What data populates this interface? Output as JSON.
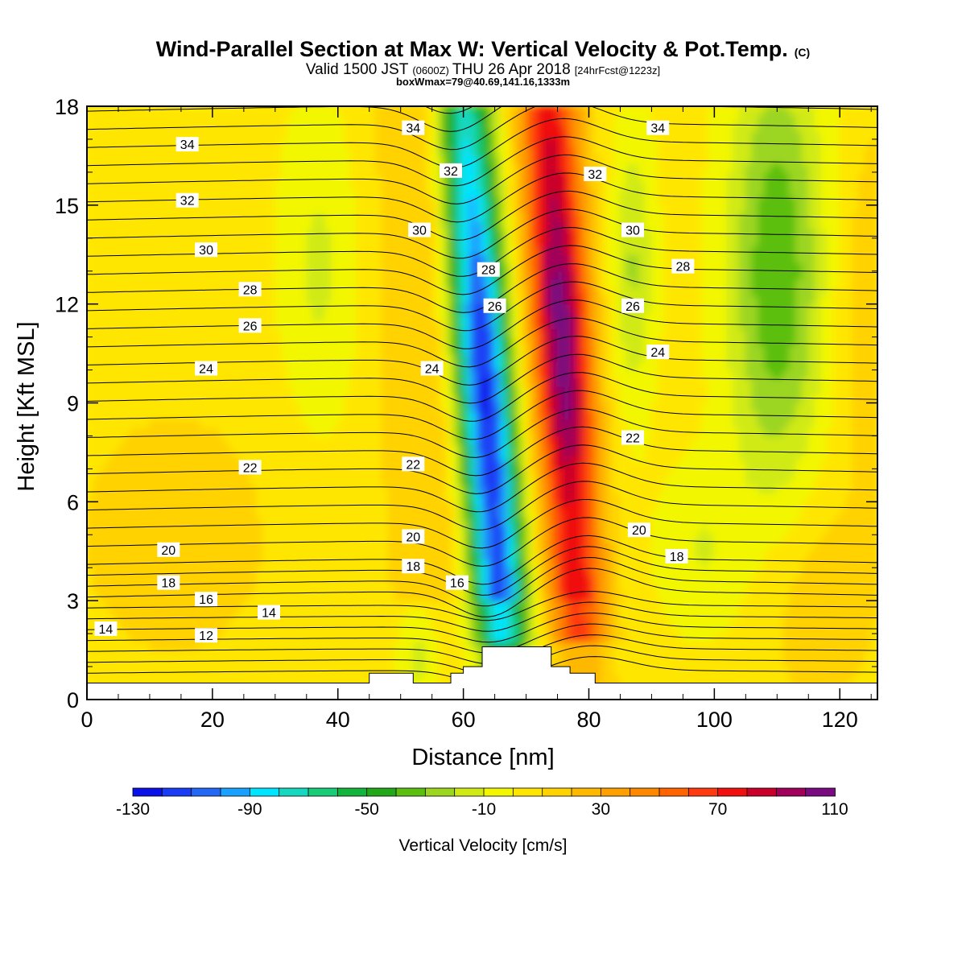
{
  "header": {
    "title_main": "Wind-Parallel Section at Max W: Vertical Velocity & Pot.Temp.",
    "title_mark": "(C)",
    "valid_a": "Valid 1500 JST",
    "valid_b": "(0600Z)",
    "valid_c": "THU 26 Apr 2018",
    "valid_d": "[24hrFcst@1223z]",
    "box_info": "boxWmax=79@40.69,141.16,1333m"
  },
  "chart_data": {
    "type": "heatmap",
    "xlabel": "Distance [nm]",
    "ylabel": "Height [Kft MSL]",
    "xlim": [
      0,
      126
    ],
    "ylim": [
      0,
      18
    ],
    "x_ticks": [
      "0",
      "20",
      "40",
      "60",
      "80",
      "100",
      "120"
    ],
    "y_ticks": [
      "0",
      "3",
      "6",
      "9",
      "12",
      "15",
      "18"
    ],
    "colorbar": {
      "label": "Vertical Velocity [cm/s]",
      "levels": [
        -130,
        -120,
        -110,
        -100,
        -90,
        -80,
        -70,
        -60,
        -50,
        -40,
        -30,
        -20,
        -10,
        0,
        10,
        20,
        30,
        40,
        50,
        60,
        70,
        80,
        90,
        100,
        110
      ],
      "colors": [
        "#0a10e8",
        "#1a3cf5",
        "#2268f5",
        "#1aa0ff",
        "#00e5ff",
        "#16d8c0",
        "#18cc78",
        "#12b43c",
        "#22a818",
        "#5cbf10",
        "#9cd620",
        "#d0ea18",
        "#f2f700",
        "#ffe600",
        "#ffd200",
        "#ffb800",
        "#ffa000",
        "#ff8800",
        "#ff6400",
        "#ff3a10",
        "#f01010",
        "#c8002a",
        "#a0005a",
        "#7a0a80"
      ],
      "tick_labels": [
        "-130",
        "-90",
        "-50",
        "-10",
        "30",
        "70",
        "110"
      ]
    },
    "contour_labels": [
      {
        "text": "34",
        "x": 16,
        "y": 16.8
      },
      {
        "text": "34",
        "x": 52,
        "y": 17.3
      },
      {
        "text": "34",
        "x": 91,
        "y": 17.3
      },
      {
        "text": "32",
        "x": 16,
        "y": 15.1
      },
      {
        "text": "32",
        "x": 58,
        "y": 16.0
      },
      {
        "text": "32",
        "x": 81,
        "y": 15.9
      },
      {
        "text": "30",
        "x": 19,
        "y": 13.6
      },
      {
        "text": "30",
        "x": 53,
        "y": 14.2
      },
      {
        "text": "30",
        "x": 87,
        "y": 14.2
      },
      {
        "text": "28",
        "x": 26,
        "y": 12.4
      },
      {
        "text": "28",
        "x": 64,
        "y": 13.0
      },
      {
        "text": "28",
        "x": 95,
        "y": 13.1
      },
      {
        "text": "26",
        "x": 26,
        "y": 11.3
      },
      {
        "text": "26",
        "x": 65,
        "y": 11.9
      },
      {
        "text": "26",
        "x": 87,
        "y": 11.9
      },
      {
        "text": "24",
        "x": 19,
        "y": 10.0
      },
      {
        "text": "24",
        "x": 55,
        "y": 10.0
      },
      {
        "text": "24",
        "x": 91,
        "y": 10.5
      },
      {
        "text": "22",
        "x": 26,
        "y": 7.0
      },
      {
        "text": "22",
        "x": 52,
        "y": 7.1
      },
      {
        "text": "22",
        "x": 87,
        "y": 7.9
      },
      {
        "text": "20",
        "x": 13,
        "y": 4.5
      },
      {
        "text": "20",
        "x": 52,
        "y": 4.9
      },
      {
        "text": "20",
        "x": 88,
        "y": 5.1
      },
      {
        "text": "18",
        "x": 13,
        "y": 3.5
      },
      {
        "text": "18",
        "x": 52,
        "y": 4.0
      },
      {
        "text": "18",
        "x": 94,
        "y": 4.3
      },
      {
        "text": "16",
        "x": 19,
        "y": 3.0
      },
      {
        "text": "16",
        "x": 59,
        "y": 3.5
      },
      {
        "text": "14",
        "x": 3,
        "y": 2.1
      },
      {
        "text": "14",
        "x": 29,
        "y": 2.6
      },
      {
        "text": "12",
        "x": 19,
        "y": 1.9
      }
    ]
  }
}
